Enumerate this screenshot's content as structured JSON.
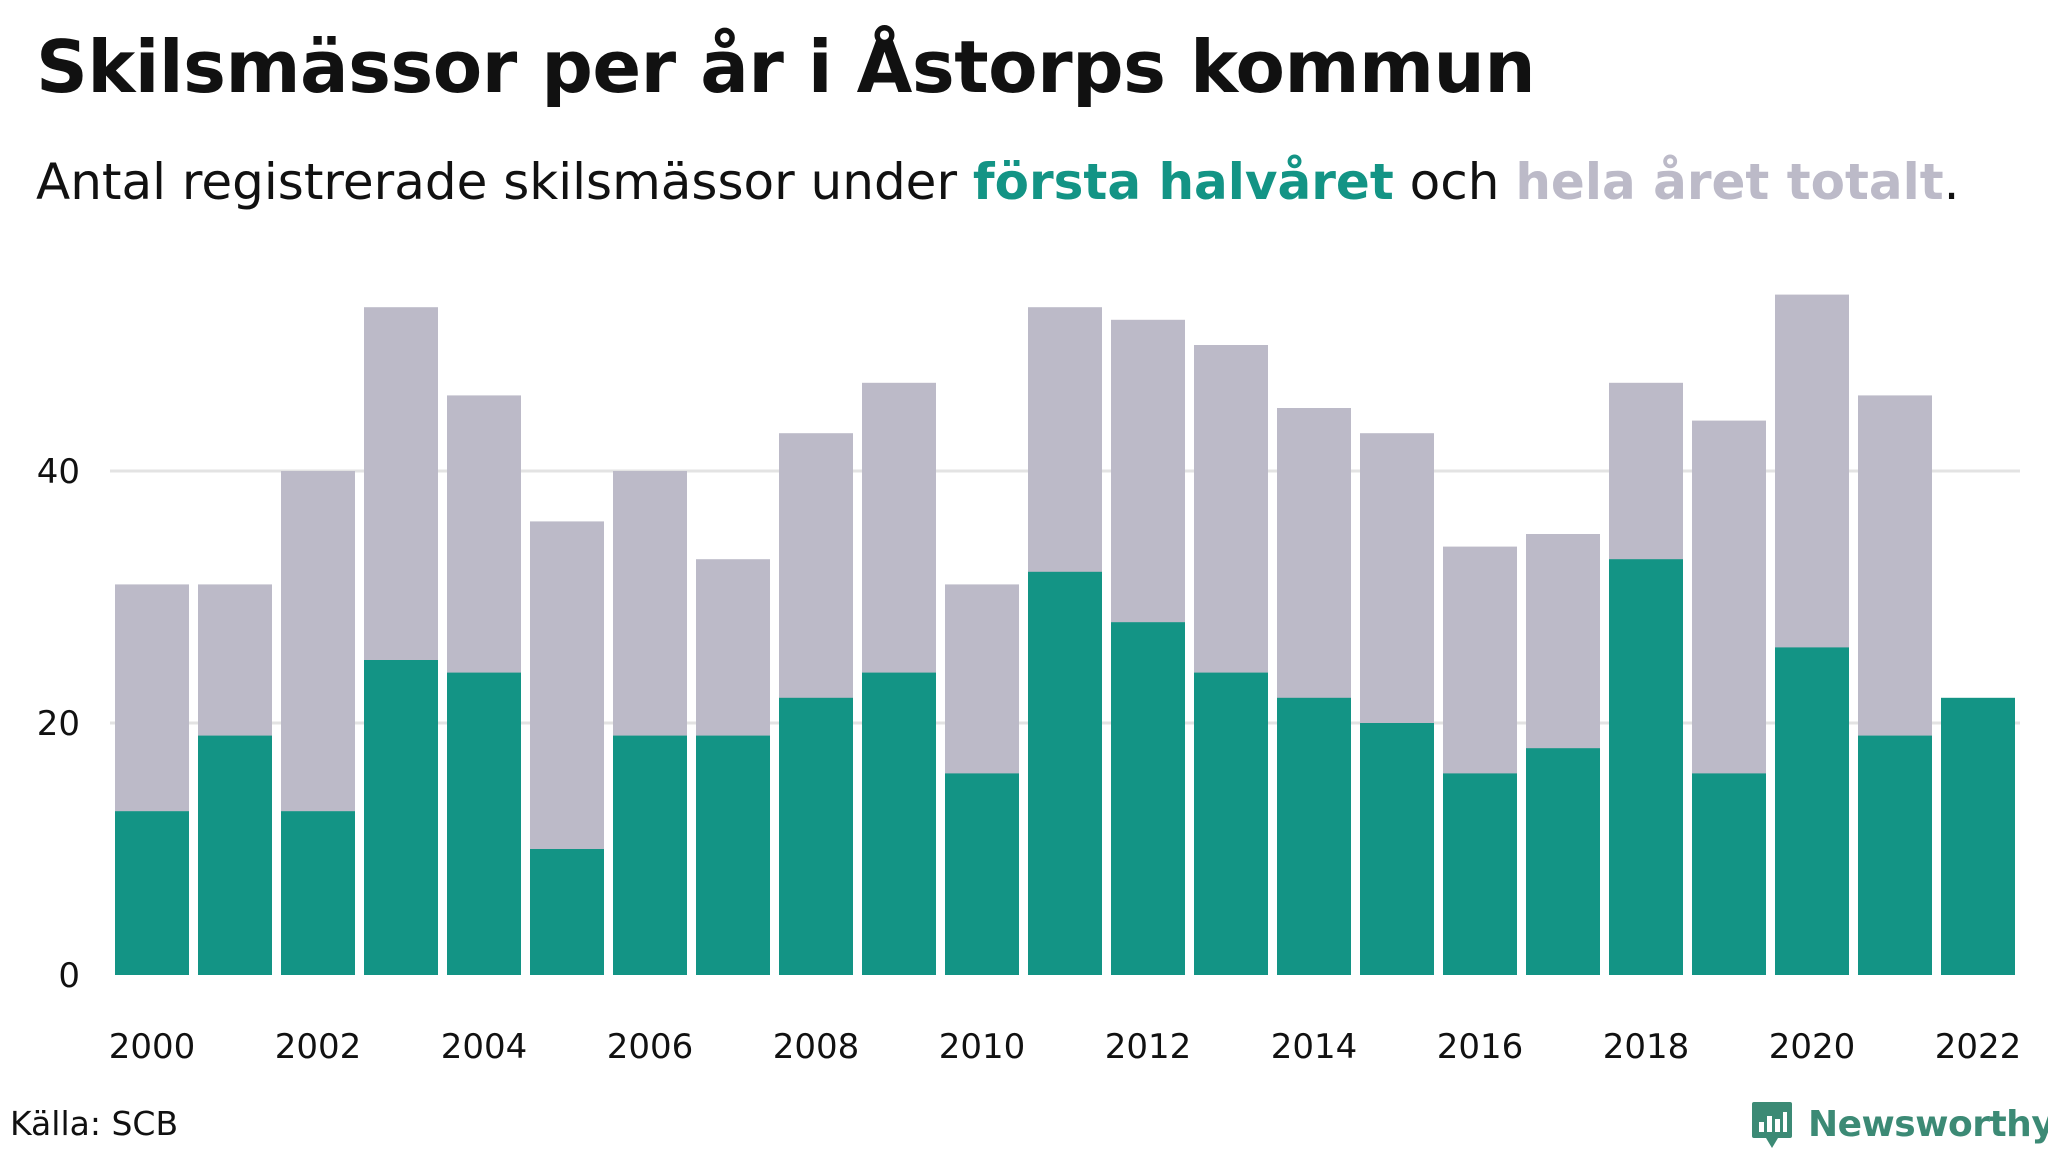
{
  "header": {
    "title": "Skilsmässor per år i Åstorps kommun",
    "subtitle_before": "Antal registrerade skilsmässor under ",
    "subtitle_first": "första halvåret",
    "subtitle_middle": " och ",
    "subtitle_total": "hela året totalt",
    "subtitle_after": "."
  },
  "footer": {
    "source": "Källa: SCB",
    "brand": "Newsworthy",
    "brand_icon": "newsworthy-logo-icon"
  },
  "colors": {
    "first_half": "#139485",
    "total": "#bcbac8",
    "gridline": "#e3e3e3",
    "axis_text": "#111111",
    "brand": "#3c8a75"
  },
  "chart_data": {
    "type": "bar",
    "stacking": "overlay",
    "categories": [
      "2000",
      "2001",
      "2002",
      "2003",
      "2004",
      "2005",
      "2006",
      "2007",
      "2008",
      "2009",
      "2010",
      "2011",
      "2012",
      "2013",
      "2014",
      "2015",
      "2016",
      "2017",
      "2018",
      "2019",
      "2020",
      "2021",
      "2022"
    ],
    "x_tick_labels": [
      "2000",
      "2002",
      "2004",
      "2006",
      "2008",
      "2010",
      "2012",
      "2014",
      "2016",
      "2018",
      "2020",
      "2022"
    ],
    "series": [
      {
        "name": "hela året totalt",
        "values": [
          31,
          31,
          40,
          53,
          46,
          36,
          40,
          33,
          43,
          47,
          31,
          53,
          52,
          50,
          45,
          43,
          34,
          35,
          47,
          44,
          54,
          46,
          null
        ]
      },
      {
        "name": "första halvåret",
        "values": [
          13,
          19,
          13,
          25,
          24,
          10,
          19,
          19,
          22,
          24,
          16,
          32,
          28,
          24,
          22,
          20,
          16,
          18,
          33,
          16,
          26,
          19,
          22
        ]
      }
    ],
    "y_ticks": [
      0,
      20,
      40
    ],
    "ylim": [
      0,
      56
    ],
    "grid": true,
    "legend": "in-subtitle",
    "xlabel": "",
    "ylabel": ""
  }
}
